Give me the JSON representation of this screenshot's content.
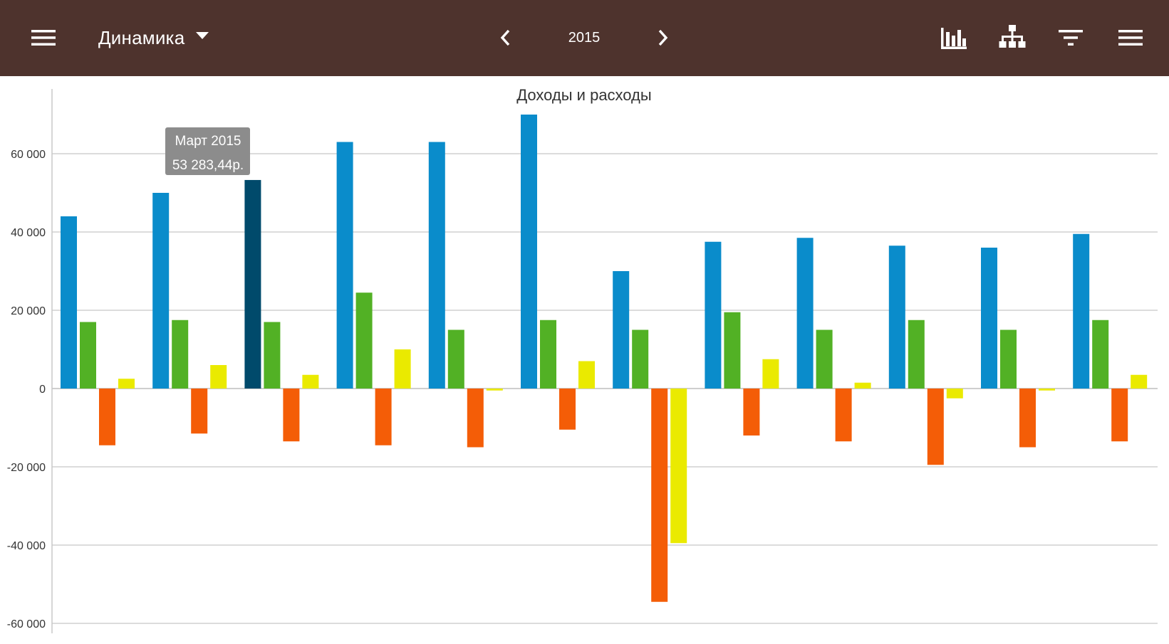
{
  "toolbar": {
    "menu_icon": "menu-icon",
    "view_selector_label": "Динамика",
    "dropdown_icon": "caret-down-icon",
    "prev_icon": "chevron-left-icon",
    "period_label": "2015",
    "next_icon": "chevron-right-icon",
    "action_icons": [
      "bar-chart-icon",
      "hierarchy-icon",
      "filter-icon",
      "overflow-menu-icon"
    ]
  },
  "colors": {
    "appbar": "#4e332d",
    "income": "#0a8ccb",
    "income_selected": "#004a6b",
    "series_green": "#52b125",
    "expense": "#f45d07",
    "series_yellow": "#eaea00",
    "grid": "#c8c8c8",
    "tooltip_bg": "#8c8c8c"
  },
  "tooltip": {
    "line1": "Март 2015",
    "line2": "53 283,44р."
  },
  "chart_data": {
    "type": "bar",
    "title": "Доходы и расходы",
    "xlabel": "",
    "ylabel": "",
    "ylim": [
      -60000,
      70000
    ],
    "yticks": [
      60000,
      40000,
      20000,
      0,
      -20000,
      -40000,
      -60000
    ],
    "ytick_labels": [
      "60 000",
      "40 000",
      "20 000",
      "0",
      "-20 000",
      "-40 000",
      "-60 000"
    ],
    "grid": true,
    "legend": "none",
    "selected": {
      "series": 0,
      "index": 2
    },
    "series": [
      {
        "color": "#0a8ccb",
        "values": [
          44000,
          50000,
          53283.44,
          63000,
          63000,
          70000,
          30000,
          37500,
          38500,
          36500,
          36000,
          39500
        ]
      },
      {
        "color": "#52b125",
        "values": [
          17000,
          17500,
          17000,
          24500,
          15000,
          17500,
          15000,
          19500,
          15000,
          17500,
          15000,
          17500
        ]
      },
      {
        "color": "#f45d07",
        "values": [
          -14500,
          -11500,
          -13500,
          -14500,
          -15000,
          -10500,
          -54500,
          -12000,
          -13500,
          -19500,
          -15000,
          -13500
        ]
      },
      {
        "color": "#eaea00",
        "values": [
          2500,
          6000,
          3500,
          10000,
          -500,
          7000,
          -39500,
          7500,
          1500,
          -2500,
          -500,
          3500
        ]
      }
    ]
  }
}
